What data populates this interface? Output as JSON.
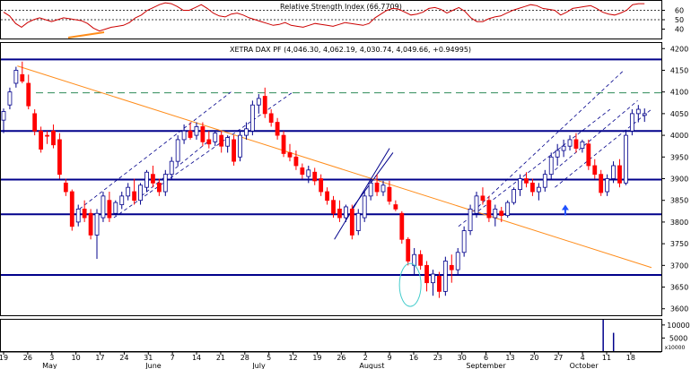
{
  "chart_data": [
    {
      "type": "line",
      "title": "Relative Strength Index (66.7709)",
      "series": [
        {
          "values": [
            58,
            54,
            46,
            42,
            47,
            50,
            52,
            50,
            48,
            50,
            52,
            51,
            50,
            49,
            46,
            41,
            38,
            40,
            42,
            43,
            44,
            47,
            52,
            55,
            60,
            63,
            66,
            68,
            67,
            64,
            60,
            60,
            63,
            66,
            62,
            57,
            54,
            53,
            56,
            57,
            55,
            52,
            50,
            48,
            46,
            44,
            45,
            47,
            44,
            43,
            42,
            44,
            46,
            45,
            44,
            43,
            45,
            47,
            46,
            45,
            44,
            46,
            52,
            56,
            60,
            62,
            61,
            58,
            55,
            56,
            58,
            62,
            63,
            61,
            57,
            60,
            63,
            59,
            52,
            48,
            48,
            51,
            53,
            54,
            57,
            60,
            62,
            64,
            66,
            65,
            62,
            61,
            60,
            55,
            58,
            62,
            63,
            64,
            65,
            62,
            58,
            56,
            55,
            57,
            60,
            66,
            67,
            67
          ]
        }
      ],
      "ylim": [
        30,
        70
      ],
      "ticks": [
        40,
        50,
        60
      ],
      "reference_lines": [
        50,
        60
      ]
    },
    {
      "type": "candlestick",
      "title": "XETRA DAX PF (4,046.30, 4,062.19, 4,030.74, 4,049.66, +0.94995)",
      "ylim": [
        3585,
        4215
      ],
      "y_ticks": [
        3600,
        3650,
        3700,
        3750,
        3800,
        3850,
        3900,
        3950,
        4000,
        4050,
        4100,
        4150,
        4200
      ],
      "x_ticks": [
        {
          "day": 0,
          "label": "19"
        },
        {
          "day": 7,
          "label": "26"
        },
        {
          "day": 14,
          "label": "3"
        },
        {
          "day": 21,
          "label": "10"
        },
        {
          "day": 28,
          "label": "17"
        },
        {
          "day": 35,
          "label": "24"
        },
        {
          "day": 42,
          "label": "31"
        },
        {
          "day": 49,
          "label": "7"
        },
        {
          "day": 56,
          "label": "14"
        },
        {
          "day": 63,
          "label": "21"
        },
        {
          "day": 70,
          "label": "28"
        },
        {
          "day": 77,
          "label": "5"
        },
        {
          "day": 84,
          "label": "12"
        },
        {
          "day": 91,
          "label": "19"
        },
        {
          "day": 98,
          "label": "26"
        },
        {
          "day": 105,
          "label": "2"
        },
        {
          "day": 112,
          "label": "9"
        },
        {
          "day": 119,
          "label": "16"
        },
        {
          "day": 126,
          "label": "23"
        },
        {
          "day": 133,
          "label": "30"
        },
        {
          "day": 140,
          "label": "6"
        },
        {
          "day": 147,
          "label": "13"
        },
        {
          "day": 154,
          "label": "20"
        },
        {
          "day": 161,
          "label": "27"
        },
        {
          "day": 168,
          "label": "4"
        },
        {
          "day": 175,
          "label": "11"
        },
        {
          "day": 182,
          "label": "18"
        }
      ],
      "months": [
        {
          "day": 12,
          "label": "May"
        },
        {
          "day": 42,
          "label": "June"
        },
        {
          "day": 73,
          "label": "July"
        },
        {
          "day": 104,
          "label": "August"
        },
        {
          "day": 135,
          "label": "September"
        },
        {
          "day": 165,
          "label": "October"
        }
      ],
      "horizontal_lines": [
        4175,
        4010,
        3898,
        3818,
        3678
      ],
      "dashed_resistance": 4098,
      "trendline": {
        "start": [
          4,
          4160
        ],
        "end": [
          188,
          3695
        ]
      },
      "candles": [
        {
          "o": 4035,
          "h": 4062,
          "l": 4005,
          "c": 4055
        },
        {
          "o": 4070,
          "h": 4110,
          "l": 4060,
          "c": 4100
        },
        {
          "o": 4120,
          "h": 4158,
          "l": 4110,
          "c": 4150
        },
        {
          "o": 4140,
          "h": 4170,
          "l": 4120,
          "c": 4125
        },
        {
          "o": 4120,
          "h": 4140,
          "l": 4060,
          "c": 4068
        },
        {
          "o": 4050,
          "h": 4060,
          "l": 4000,
          "c": 4010
        },
        {
          "o": 4010,
          "h": 4020,
          "l": 3960,
          "c": 3968
        },
        {
          "o": 4000,
          "h": 4010,
          "l": 3980,
          "c": 3998
        },
        {
          "o": 4010,
          "h": 4025,
          "l": 3970,
          "c": 3978
        },
        {
          "o": 3990,
          "h": 4005,
          "l": 3900,
          "c": 3910
        },
        {
          "o": 3890,
          "h": 3900,
          "l": 3860,
          "c": 3870
        },
        {
          "o": 3870,
          "h": 3875,
          "l": 3780,
          "c": 3790
        },
        {
          "o": 3800,
          "h": 3840,
          "l": 3790,
          "c": 3830
        },
        {
          "o": 3830,
          "h": 3850,
          "l": 3800,
          "c": 3810
        },
        {
          "o": 3820,
          "h": 3830,
          "l": 3760,
          "c": 3770
        },
        {
          "o": 3770,
          "h": 3830,
          "l": 3715,
          "c": 3820
        },
        {
          "o": 3810,
          "h": 3870,
          "l": 3800,
          "c": 3860
        },
        {
          "o": 3850,
          "h": 3870,
          "l": 3800,
          "c": 3810
        },
        {
          "o": 3820,
          "h": 3850,
          "l": 3815,
          "c": 3845
        },
        {
          "o": 3840,
          "h": 3870,
          "l": 3830,
          "c": 3860
        },
        {
          "o": 3860,
          "h": 3890,
          "l": 3850,
          "c": 3880
        },
        {
          "o": 3870,
          "h": 3900,
          "l": 3840,
          "c": 3850
        },
        {
          "o": 3850,
          "h": 3890,
          "l": 3840,
          "c": 3885
        },
        {
          "o": 3880,
          "h": 3920,
          "l": 3870,
          "c": 3915
        },
        {
          "o": 3910,
          "h": 3930,
          "l": 3880,
          "c": 3890
        },
        {
          "o": 3890,
          "h": 3900,
          "l": 3860,
          "c": 3870
        },
        {
          "o": 3870,
          "h": 3920,
          "l": 3860,
          "c": 3910
        },
        {
          "o": 3910,
          "h": 3950,
          "l": 3900,
          "c": 3940
        },
        {
          "o": 3940,
          "h": 4000,
          "l": 3930,
          "c": 3990
        },
        {
          "o": 3990,
          "h": 4025,
          "l": 3980,
          "c": 4010
        },
        {
          "o": 4010,
          "h": 4030,
          "l": 3990,
          "c": 3995
        },
        {
          "o": 4000,
          "h": 4030,
          "l": 3990,
          "c": 4020
        },
        {
          "o": 4020,
          "h": 4030,
          "l": 3975,
          "c": 3985
        },
        {
          "o": 3990,
          "h": 4010,
          "l": 3970,
          "c": 3980
        },
        {
          "o": 3985,
          "h": 4010,
          "l": 3975,
          "c": 4005
        },
        {
          "o": 4000,
          "h": 4010,
          "l": 3960,
          "c": 3975
        },
        {
          "o": 3975,
          "h": 4000,
          "l": 3960,
          "c": 3995
        },
        {
          "o": 3990,
          "h": 4000,
          "l": 3930,
          "c": 3940
        },
        {
          "o": 3950,
          "h": 4010,
          "l": 3940,
          "c": 4000
        },
        {
          "o": 4000,
          "h": 4030,
          "l": 3990,
          "c": 4015
        },
        {
          "o": 4010,
          "h": 4080,
          "l": 4000,
          "c": 4070
        },
        {
          "o": 4070,
          "h": 4095,
          "l": 4050,
          "c": 4085
        },
        {
          "o": 4090,
          "h": 4110,
          "l": 4040,
          "c": 4050
        },
        {
          "o": 4050,
          "h": 4060,
          "l": 4020,
          "c": 4030
        },
        {
          "o": 4030,
          "h": 4040,
          "l": 3990,
          "c": 4000
        },
        {
          "o": 4000,
          "h": 4010,
          "l": 3950,
          "c": 3958
        },
        {
          "o": 3960,
          "h": 3980,
          "l": 3940,
          "c": 3950
        },
        {
          "o": 3950,
          "h": 3965,
          "l": 3920,
          "c": 3930
        },
        {
          "o": 3925,
          "h": 3935,
          "l": 3900,
          "c": 3910
        },
        {
          "o": 3905,
          "h": 3930,
          "l": 3890,
          "c": 3920
        },
        {
          "o": 3915,
          "h": 3925,
          "l": 3885,
          "c": 3895
        },
        {
          "o": 3900,
          "h": 3910,
          "l": 3860,
          "c": 3870
        },
        {
          "o": 3870,
          "h": 3880,
          "l": 3840,
          "c": 3850
        },
        {
          "o": 3850,
          "h": 3860,
          "l": 3810,
          "c": 3820
        },
        {
          "o": 3830,
          "h": 3850,
          "l": 3800,
          "c": 3810
        },
        {
          "o": 3810,
          "h": 3840,
          "l": 3800,
          "c": 3835
        },
        {
          "o": 3830,
          "h": 3840,
          "l": 3760,
          "c": 3770
        },
        {
          "o": 3780,
          "h": 3830,
          "l": 3770,
          "c": 3820
        },
        {
          "o": 3810,
          "h": 3870,
          "l": 3800,
          "c": 3860
        },
        {
          "o": 3860,
          "h": 3900,
          "l": 3850,
          "c": 3890
        },
        {
          "o": 3890,
          "h": 3910,
          "l": 3860,
          "c": 3870
        },
        {
          "o": 3870,
          "h": 3895,
          "l": 3860,
          "c": 3885
        },
        {
          "o": 3880,
          "h": 3895,
          "l": 3840,
          "c": 3848
        },
        {
          "o": 3840,
          "h": 3850,
          "l": 3825,
          "c": 3830
        },
        {
          "o": 3820,
          "h": 3825,
          "l": 3750,
          "c": 3760
        },
        {
          "o": 3760,
          "h": 3765,
          "l": 3700,
          "c": 3710
        },
        {
          "o": 3700,
          "h": 3740,
          "l": 3680,
          "c": 3725
        },
        {
          "o": 3725,
          "h": 3735,
          "l": 3690,
          "c": 3700
        },
        {
          "o": 3700,
          "h": 3710,
          "l": 3640,
          "c": 3660
        },
        {
          "o": 3660,
          "h": 3690,
          "l": 3630,
          "c": 3680
        },
        {
          "o": 3675,
          "h": 3685,
          "l": 3625,
          "c": 3640
        },
        {
          "o": 3640,
          "h": 3720,
          "l": 3630,
          "c": 3710
        },
        {
          "o": 3700,
          "h": 3725,
          "l": 3660,
          "c": 3690
        },
        {
          "o": 3690,
          "h": 3740,
          "l": 3680,
          "c": 3730
        },
        {
          "o": 3730,
          "h": 3790,
          "l": 3720,
          "c": 3780
        },
        {
          "o": 3780,
          "h": 3840,
          "l": 3770,
          "c": 3830
        },
        {
          "o": 3820,
          "h": 3870,
          "l": 3810,
          "c": 3860
        },
        {
          "o": 3860,
          "h": 3880,
          "l": 3840,
          "c": 3850
        },
        {
          "o": 3850,
          "h": 3860,
          "l": 3800,
          "c": 3810
        },
        {
          "o": 3810,
          "h": 3840,
          "l": 3790,
          "c": 3830
        },
        {
          "o": 3825,
          "h": 3835,
          "l": 3800,
          "c": 3815
        },
        {
          "o": 3815,
          "h": 3850,
          "l": 3810,
          "c": 3845
        },
        {
          "o": 3845,
          "h": 3880,
          "l": 3840,
          "c": 3875
        },
        {
          "o": 3875,
          "h": 3910,
          "l": 3860,
          "c": 3900
        },
        {
          "o": 3900,
          "h": 3915,
          "l": 3880,
          "c": 3890
        },
        {
          "o": 3890,
          "h": 3900,
          "l": 3860,
          "c": 3870
        },
        {
          "o": 3870,
          "h": 3890,
          "l": 3850,
          "c": 3880
        },
        {
          "o": 3880,
          "h": 3920,
          "l": 3870,
          "c": 3910
        },
        {
          "o": 3910,
          "h": 3960,
          "l": 3900,
          "c": 3950
        },
        {
          "o": 3950,
          "h": 3980,
          "l": 3930,
          "c": 3965
        },
        {
          "o": 3965,
          "h": 3990,
          "l": 3950,
          "c": 3975
        },
        {
          "o": 3975,
          "h": 4000,
          "l": 3965,
          "c": 3990
        },
        {
          "o": 3990,
          "h": 4005,
          "l": 3960,
          "c": 3970
        },
        {
          "o": 3970,
          "h": 3990,
          "l": 3960,
          "c": 3985
        },
        {
          "o": 3980,
          "h": 3990,
          "l": 3920,
          "c": 3930
        },
        {
          "o": 3930,
          "h": 3945,
          "l": 3900,
          "c": 3910
        },
        {
          "o": 3910,
          "h": 3920,
          "l": 3860,
          "c": 3868
        },
        {
          "o": 3870,
          "h": 3910,
          "l": 3860,
          "c": 3900
        },
        {
          "o": 3900,
          "h": 3940,
          "l": 3890,
          "c": 3930
        },
        {
          "o": 3930,
          "h": 3945,
          "l": 3880,
          "c": 3890
        },
        {
          "o": 3890,
          "h": 4010,
          "l": 3885,
          "c": 4000
        },
        {
          "o": 4010,
          "h": 4060,
          "l": 4000,
          "c": 4050
        },
        {
          "o": 4050,
          "h": 4070,
          "l": 4030,
          "c": 4060
        },
        {
          "o": 4046,
          "h": 4062,
          "l": 4031,
          "c": 4050
        }
      ],
      "volume_axis": {
        "ticks": [
          {
            "value": 10000,
            "label": "10000"
          },
          {
            "value": 5000,
            "label": "5000"
          }
        ],
        "multiplier_label": "x10000"
      }
    }
  ]
}
